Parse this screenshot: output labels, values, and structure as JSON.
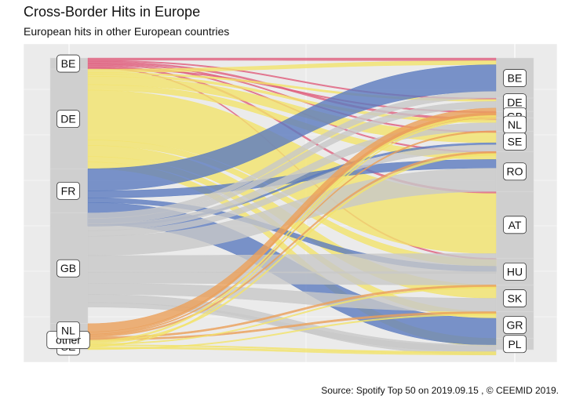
{
  "chart_data": {
    "type": "alluvial",
    "title": "Cross-Border Hits in Europe",
    "subtitle": "European hits in other European countries",
    "caption": "Source: Spotify Top 50 on 2019.09.15 , © CEEMID 2019.",
    "grid": true,
    "left_axis": [
      {
        "name": "BE",
        "value": 2
      },
      {
        "name": "DE",
        "value": 18
      },
      {
        "name": "FR",
        "value": 8
      },
      {
        "name": "GB",
        "value": 20
      },
      {
        "name": "NL",
        "value": 3
      },
      {
        "name": "other",
        "value": 1
      },
      {
        "name": "SE",
        "value": 0.7
      }
    ],
    "right_axis": [
      {
        "name": "BE",
        "value": 6
      },
      {
        "name": "DE",
        "value": 2
      },
      {
        "name": "GB",
        "value": 1
      },
      {
        "name": "NL",
        "value": 2
      },
      {
        "name": "SE",
        "value": 3
      },
      {
        "name": "RO",
        "value": 6
      },
      {
        "name": "AT",
        "value": 10
      },
      {
        "name": "HU",
        "value": 4
      },
      {
        "name": "SK",
        "value": 4
      },
      {
        "name": "GR",
        "value": 4
      },
      {
        "name": "PL",
        "value": 1.7
      }
    ],
    "colors": {
      "BE": "#e0607e",
      "DE": "#f2e36b",
      "FR": "#5b7bbf",
      "GB": "#c8c8c8",
      "NL": "#eba05a",
      "other": "#f2e36b",
      "SE": "#f2e36b"
    },
    "flows": [
      {
        "from": "BE",
        "to": "BE",
        "value": 0.4
      },
      {
        "from": "BE",
        "to": "DE",
        "value": 0.2
      },
      {
        "from": "BE",
        "to": "NL",
        "value": 0.3
      },
      {
        "from": "BE",
        "to": "SE",
        "value": 0.2
      },
      {
        "from": "BE",
        "to": "RO",
        "value": 0.2
      },
      {
        "from": "BE",
        "to": "AT",
        "value": 0.3
      },
      {
        "from": "BE",
        "to": "HU",
        "value": 0.2
      },
      {
        "from": "BE",
        "to": "GB",
        "value": 0.2
      },
      {
        "from": "DE",
        "to": "BE",
        "value": 0.6
      },
      {
        "from": "DE",
        "to": "DE",
        "value": 0.3
      },
      {
        "from": "DE",
        "to": "NL",
        "value": 0.4
      },
      {
        "from": "DE",
        "to": "SE",
        "value": 1.5
      },
      {
        "from": "DE",
        "to": "RO",
        "value": 1
      },
      {
        "from": "DE",
        "to": "AT",
        "value": 9
      },
      {
        "from": "DE",
        "to": "HU",
        "value": 1
      },
      {
        "from": "DE",
        "to": "SK",
        "value": 2
      },
      {
        "from": "DE",
        "to": "GR",
        "value": 1
      },
      {
        "from": "DE",
        "to": "PL",
        "value": 1.2
      },
      {
        "from": "FR",
        "to": "BE",
        "value": 4
      },
      {
        "from": "FR",
        "to": "RO",
        "value": 1.3
      },
      {
        "from": "FR",
        "to": "HU",
        "value": 0.8
      },
      {
        "from": "FR",
        "to": "GR",
        "value": 4
      },
      {
        "from": "FR",
        "to": "SE",
        "value": 0.3
      },
      {
        "from": "GB",
        "to": "BE",
        "value": 1
      },
      {
        "from": "GB",
        "to": "DE",
        "value": 1
      },
      {
        "from": "GB",
        "to": "NL",
        "value": 1.2
      },
      {
        "from": "GB",
        "to": "SE",
        "value": 1
      },
      {
        "from": "GB",
        "to": "RO",
        "value": 3.5
      },
      {
        "from": "GB",
        "to": "AT",
        "value": 3
      },
      {
        "from": "GB",
        "to": "HU",
        "value": 2
      },
      {
        "from": "GB",
        "to": "SK",
        "value": 2
      },
      {
        "from": "GB",
        "to": "GR",
        "value": 1.5
      },
      {
        "from": "GB",
        "to": "PL",
        "value": 0.8
      },
      {
        "from": "NL",
        "to": "DE",
        "value": 1.5
      },
      {
        "from": "NL",
        "to": "GB",
        "value": 0.4
      },
      {
        "from": "NL",
        "to": "NL",
        "value": 0.2
      },
      {
        "from": "NL",
        "to": "SE",
        "value": 0.3
      },
      {
        "from": "NL",
        "to": "HU",
        "value": 0.3
      },
      {
        "from": "NL",
        "to": "SK",
        "value": 0.3
      },
      {
        "from": "other",
        "to": "GB",
        "value": 0.3
      },
      {
        "from": "other",
        "to": "SE",
        "value": 0.3
      },
      {
        "from": "other",
        "to": "HU",
        "value": 0.2
      },
      {
        "from": "other",
        "to": "PL",
        "value": 0.2
      },
      {
        "from": "SE",
        "to": "DE",
        "value": 0.2
      },
      {
        "from": "SE",
        "to": "PL",
        "value": 0.3
      },
      {
        "from": "SE",
        "to": "SK",
        "value": 0.2
      }
    ]
  }
}
